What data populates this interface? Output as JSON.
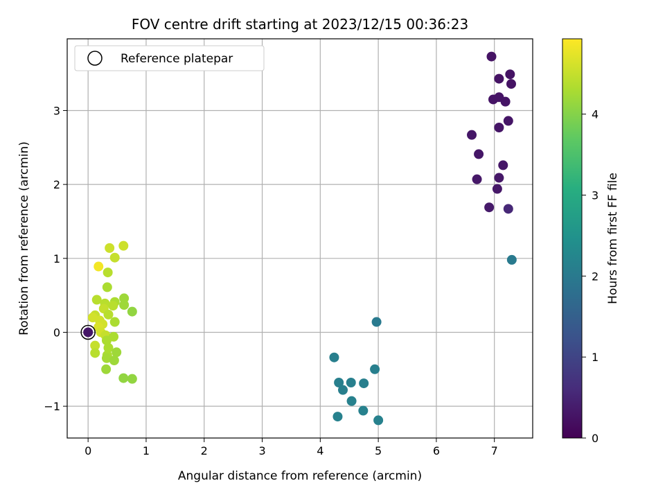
{
  "chart_data": {
    "type": "scatter",
    "title": "FOV centre drift starting at 2023/12/15 00:36:23",
    "xlabel": "Angular distance from reference (arcmin)",
    "ylabel": "Rotation from reference (arcmin)",
    "xlim": [
      -0.36,
      7.66
    ],
    "ylim": [
      -1.43,
      3.97
    ],
    "xticks": [
      0,
      1,
      2,
      3,
      4,
      5,
      6,
      7
    ],
    "yticks": [
      -1,
      0,
      1,
      2,
      3
    ],
    "grid": true,
    "legend": {
      "position": "top-left",
      "entries": [
        "Reference platepar"
      ]
    },
    "reference_point": {
      "x": 0,
      "y": 0
    },
    "colorbar": {
      "label": "Hours from first FF file",
      "colormap": "viridis",
      "range": [
        0,
        4.93
      ],
      "ticks": [
        0,
        1,
        2,
        3,
        4
      ]
    },
    "points": [
      {
        "x": 6.95,
        "y": 3.73,
        "c": 0.25
      },
      {
        "x": 7.08,
        "y": 3.43,
        "c": 0.25
      },
      {
        "x": 7.27,
        "y": 3.49,
        "c": 0.25
      },
      {
        "x": 7.29,
        "y": 3.36,
        "c": 0.25
      },
      {
        "x": 6.98,
        "y": 3.15,
        "c": 0.27
      },
      {
        "x": 7.08,
        "y": 3.18,
        "c": 0.27
      },
      {
        "x": 7.19,
        "y": 3.12,
        "c": 0.27
      },
      {
        "x": 7.24,
        "y": 2.86,
        "c": 0.28
      },
      {
        "x": 7.08,
        "y": 2.77,
        "c": 0.28
      },
      {
        "x": 6.61,
        "y": 2.67,
        "c": 0.3
      },
      {
        "x": 6.73,
        "y": 2.41,
        "c": 0.3
      },
      {
        "x": 7.15,
        "y": 2.26,
        "c": 0.3
      },
      {
        "x": 6.7,
        "y": 2.07,
        "c": 0.32
      },
      {
        "x": 7.08,
        "y": 2.09,
        "c": 0.32
      },
      {
        "x": 7.05,
        "y": 1.94,
        "c": 0.32
      },
      {
        "x": 6.91,
        "y": 1.69,
        "c": 0.35
      },
      {
        "x": 7.24,
        "y": 1.67,
        "c": 0.55
      },
      {
        "x": 7.3,
        "y": 0.98,
        "c": 2.0
      },
      {
        "x": 4.97,
        "y": 0.14,
        "c": 2.0
      },
      {
        "x": 4.24,
        "y": -0.34,
        "c": 2.1
      },
      {
        "x": 4.94,
        "y": -0.5,
        "c": 2.1
      },
      {
        "x": 4.32,
        "y": -0.68,
        "c": 2.1
      },
      {
        "x": 4.53,
        "y": -0.68,
        "c": 2.1
      },
      {
        "x": 4.75,
        "y": -0.69,
        "c": 2.1
      },
      {
        "x": 4.39,
        "y": -0.78,
        "c": 2.1
      },
      {
        "x": 4.54,
        "y": -0.93,
        "c": 2.15
      },
      {
        "x": 4.74,
        "y": -1.06,
        "c": 2.15
      },
      {
        "x": 4.3,
        "y": -1.14,
        "c": 2.15
      },
      {
        "x": 5.0,
        "y": -1.19,
        "c": 2.15
      },
      {
        "x": 0.0,
        "y": 0.0,
        "c": 0.3
      },
      {
        "x": 0.18,
        "y": 0.89,
        "c": 4.85
      },
      {
        "x": 0.37,
        "y": 1.14,
        "c": 4.55
      },
      {
        "x": 0.61,
        "y": 1.17,
        "c": 4.55
      },
      {
        "x": 0.46,
        "y": 1.01,
        "c": 4.5
      },
      {
        "x": 0.34,
        "y": 0.81,
        "c": 4.4
      },
      {
        "x": 0.33,
        "y": 0.61,
        "c": 4.3
      },
      {
        "x": 0.15,
        "y": 0.44,
        "c": 4.4
      },
      {
        "x": 0.62,
        "y": 0.46,
        "c": 4.2
      },
      {
        "x": 0.46,
        "y": 0.41,
        "c": 4.3
      },
      {
        "x": 0.29,
        "y": 0.39,
        "c": 4.4
      },
      {
        "x": 0.62,
        "y": 0.37,
        "c": 4.2
      },
      {
        "x": 0.43,
        "y": 0.36,
        "c": 4.4
      },
      {
        "x": 0.27,
        "y": 0.32,
        "c": 4.5
      },
      {
        "x": 0.76,
        "y": 0.28,
        "c": 4.1
      },
      {
        "x": 0.35,
        "y": 0.24,
        "c": 4.4
      },
      {
        "x": 0.12,
        "y": 0.23,
        "c": 4.5
      },
      {
        "x": 0.08,
        "y": 0.2,
        "c": 4.6
      },
      {
        "x": 0.2,
        "y": 0.16,
        "c": 4.6
      },
      {
        "x": 0.46,
        "y": 0.14,
        "c": 4.3
      },
      {
        "x": 0.25,
        "y": 0.11,
        "c": 4.6
      },
      {
        "x": 0.18,
        "y": 0.07,
        "c": 4.65
      },
      {
        "x": 0.22,
        "y": 0.0,
        "c": 4.6
      },
      {
        "x": 0.3,
        "y": -0.04,
        "c": 4.5
      },
      {
        "x": 0.44,
        "y": -0.06,
        "c": 4.3
      },
      {
        "x": 0.32,
        "y": -0.11,
        "c": 4.3
      },
      {
        "x": 0.12,
        "y": -0.18,
        "c": 4.5
      },
      {
        "x": 0.35,
        "y": -0.21,
        "c": 4.3
      },
      {
        "x": 0.12,
        "y": -0.28,
        "c": 4.4
      },
      {
        "x": 0.49,
        "y": -0.27,
        "c": 4.2
      },
      {
        "x": 0.33,
        "y": -0.31,
        "c": 4.3
      },
      {
        "x": 0.32,
        "y": -0.35,
        "c": 4.25
      },
      {
        "x": 0.45,
        "y": -0.38,
        "c": 4.2
      },
      {
        "x": 0.31,
        "y": -0.5,
        "c": 4.2
      },
      {
        "x": 0.61,
        "y": -0.62,
        "c": 4.1
      },
      {
        "x": 0.76,
        "y": -0.63,
        "c": 4.1
      }
    ]
  }
}
